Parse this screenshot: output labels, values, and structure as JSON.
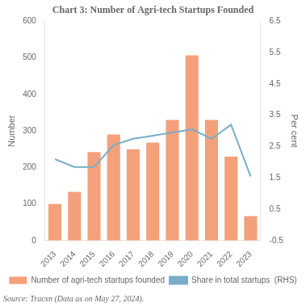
{
  "chart_data": {
    "type": "bar",
    "title": "Chart 3: Number of Agri-tech Startups Founded",
    "categories": [
      2013,
      2014,
      2015,
      2016,
      2017,
      2018,
      2019,
      2020,
      2021,
      2022,
      2023
    ],
    "series": [
      {
        "name": "Number of agri-tech startups founded",
        "type": "bar",
        "color": "#F4A07A",
        "values": [
          100,
          133,
          242,
          290,
          250,
          268,
          330,
          507,
          330,
          230,
          67
        ]
      },
      {
        "name": "Share in total startups  (RHS)",
        "type": "line",
        "axis": "y2",
        "color": "#7aaec8",
        "marker": "none",
        "values": [
          2.1,
          1.85,
          1.85,
          2.55,
          2.75,
          2.85,
          2.95,
          3.05,
          2.75,
          3.2,
          1.55
        ]
      }
    ],
    "ylabel": "Number",
    "y2label": "Per cent",
    "ylim": [
      0,
      600
    ],
    "yticks": [
      0,
      100,
      200,
      300,
      400,
      500,
      600
    ],
    "y2lim": [
      -0.5,
      6.5
    ],
    "y2ticks": [
      -0.5,
      0.5,
      1.5,
      2.5,
      3.5,
      4.5,
      5.5,
      6.5
    ],
    "grid": false,
    "legend": "bottom",
    "annotations": [
      "Source: Tracxn (Data as on May 27, 2024)."
    ]
  }
}
